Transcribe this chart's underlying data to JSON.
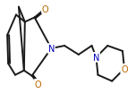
{
  "bg_color": "#ffffff",
  "bond_color": "#1a1a1a",
  "atom_colors": {
    "N": "#0000bb",
    "O": "#bb6600"
  },
  "line_width": 1.4,
  "font_size": 6.5
}
